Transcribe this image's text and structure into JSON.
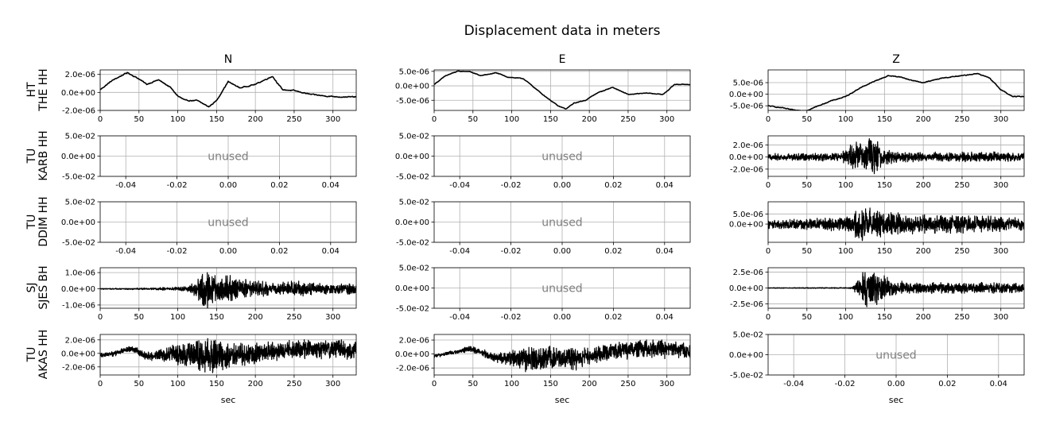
{
  "figure": {
    "title": "Displacement data in meters",
    "xlabel": "sec",
    "unused_label": "unused"
  },
  "columns": [
    "N",
    "E",
    "Z"
  ],
  "rows": [
    {
      "network": "HT",
      "station": "THE HH"
    },
    {
      "network": "TU",
      "station": "KARB HH"
    },
    {
      "network": "TU",
      "station": "DDIM HH"
    },
    {
      "network": "SJ",
      "station": "SJES BH"
    },
    {
      "network": "TU",
      "station": "AKAS HH"
    }
  ],
  "colors": {
    "trace": "#000000",
    "grid": "#b0b0b0",
    "unused_text": "#808080",
    "axes": "#000000"
  },
  "chart_data": [
    {
      "type": "line",
      "row": 0,
      "col": 0,
      "used": true,
      "xlim": [
        0,
        330
      ],
      "ylim": [
        -2e-06,
        2.5e-06
      ],
      "xticks": [
        "0",
        "50",
        "100",
        "150",
        "200",
        "250",
        "300"
      ],
      "xtick_values": [
        0,
        50,
        100,
        150,
        200,
        250,
        300
      ],
      "yticks": [
        "2.0e-06",
        "0.0e+00",
        "-2.0e-06"
      ],
      "ytick_values": [
        2e-06,
        0,
        -2e-06
      ],
      "series": [
        {
          "kind": "drift",
          "noise": 1e-07,
          "x": [
            0,
            15,
            35,
            50,
            60,
            75,
            90,
            100,
            110,
            125,
            140,
            150,
            165,
            180,
            200,
            222,
            235,
            250,
            270,
            290,
            310,
            330
          ],
          "y": [
            3e-07,
            1.3e-06,
            2.2e-06,
            1.5e-06,
            9e-07,
            1.4e-06,
            6e-07,
            -4e-07,
            -9e-07,
            -9e-07,
            -1.6e-06,
            -9e-07,
            1.2e-06,
            5e-07,
            9e-07,
            1.8e-06,
            3e-07,
            2e-07,
            -2e-07,
            -4e-07,
            -5e-07,
            -5e-07
          ]
        }
      ]
    },
    {
      "type": "line",
      "row": 0,
      "col": 1,
      "used": true,
      "xlim": [
        0,
        330
      ],
      "ylim": [
        -8.5e-06,
        5.5e-06
      ],
      "xticks": [
        "0",
        "50",
        "100",
        "150",
        "200",
        "250",
        "300"
      ],
      "xtick_values": [
        0,
        50,
        100,
        150,
        200,
        250,
        300
      ],
      "yticks": [
        "5.0e-06",
        "0.0e+00",
        "-5.0e-06"
      ],
      "ytick_values": [
        5e-06,
        0,
        -5e-06
      ],
      "series": [
        {
          "kind": "drift",
          "noise": 2e-07,
          "x": [
            0,
            15,
            30,
            45,
            60,
            80,
            95,
            115,
            140,
            160,
            170,
            180,
            195,
            210,
            230,
            250,
            275,
            295,
            310,
            330
          ],
          "y": [
            5e-07,
            3.5e-06,
            5e-06,
            5e-06,
            3.5e-06,
            4.5e-06,
            3e-06,
            2.5e-06,
            -3e-06,
            -7e-06,
            -8e-06,
            -6e-06,
            -5e-06,
            -2.5e-06,
            -5e-07,
            -3e-06,
            -2.5e-06,
            -3e-06,
            5e-07,
            5e-07
          ]
        }
      ]
    },
    {
      "type": "line",
      "row": 0,
      "col": 2,
      "used": true,
      "xlim": [
        0,
        330
      ],
      "ylim": [
        -7e-06,
        1.05e-05
      ],
      "xticks": [
        "0",
        "50",
        "100",
        "150",
        "200",
        "250",
        "300"
      ],
      "xtick_values": [
        0,
        50,
        100,
        150,
        200,
        250,
        300
      ],
      "yticks": [
        "5.0e-06",
        "0.0e+00",
        "-5.0e-06"
      ],
      "ytick_values": [
        5e-06,
        0,
        -5e-06
      ],
      "series": [
        {
          "kind": "drift",
          "noise": 3e-07,
          "x": [
            0,
            20,
            35,
            50,
            65,
            80,
            100,
            120,
            140,
            155,
            170,
            185,
            200,
            225,
            250,
            270,
            285,
            300,
            315,
            330
          ],
          "y": [
            -5e-06,
            -6e-06,
            -7e-06,
            -7e-06,
            -5e-06,
            -3e-06,
            -1e-06,
            3e-06,
            6e-06,
            8e-06,
            7.5e-06,
            6e-06,
            5e-06,
            7e-06,
            8e-06,
            9e-06,
            7e-06,
            2e-06,
            -1e-06,
            -1e-06
          ]
        }
      ]
    },
    {
      "type": "line",
      "row": 1,
      "col": 0,
      "used": false,
      "xlim": [
        -0.05,
        0.05
      ],
      "ylim": [
        -0.05,
        0.05
      ],
      "xticks": [
        "-0.04",
        "-0.02",
        "0.00",
        "0.02",
        "0.04"
      ],
      "xtick_values": [
        -0.04,
        -0.02,
        0,
        0.02,
        0.04
      ],
      "yticks": [
        "5.0e-02",
        "0.0e+00",
        "-5.0e-02"
      ],
      "ytick_values": [
        0.05,
        0,
        -0.05
      ],
      "series": []
    },
    {
      "type": "line",
      "row": 1,
      "col": 1,
      "used": false,
      "xlim": [
        -0.05,
        0.05
      ],
      "ylim": [
        -0.05,
        0.05
      ],
      "xticks": [
        "-0.04",
        "-0.02",
        "0.00",
        "0.02",
        "0.04"
      ],
      "xtick_values": [
        -0.04,
        -0.02,
        0,
        0.02,
        0.04
      ],
      "yticks": [
        "5.0e-02",
        "0.0e+00",
        "-5.0e-02"
      ],
      "ytick_values": [
        0.05,
        0,
        -0.05
      ],
      "series": []
    },
    {
      "type": "line",
      "row": 1,
      "col": 2,
      "used": true,
      "xlim": [
        0,
        330
      ],
      "ylim": [
        -3.2e-06,
        3.5e-06
      ],
      "xticks": [
        "0",
        "50",
        "100",
        "150",
        "200",
        "250",
        "300"
      ],
      "xtick_values": [
        0,
        50,
        100,
        150,
        200,
        250,
        300
      ],
      "yticks": [
        "2.0e-06",
        "0.0e+00",
        "-2.0e-06"
      ],
      "ytick_values": [
        2e-06,
        0,
        -2e-06
      ],
      "series": [
        {
          "kind": "noise",
          "base": 0,
          "pre_amp": 5e-07,
          "env_x": [
            0,
            90,
            100,
            110,
            120,
            130,
            140,
            150,
            170,
            200,
            250,
            290,
            330
          ],
          "env_y": [
            5e-07,
            6e-07,
            1e-06,
            2.6e-06,
            2e-06,
            2.8e-06,
            2.5e-06,
            1.3e-06,
            8e-07,
            7e-07,
            7e-07,
            8e-07,
            6e-07
          ]
        }
      ]
    },
    {
      "type": "line",
      "row": 2,
      "col": 0,
      "used": false,
      "xlim": [
        -0.05,
        0.05
      ],
      "ylim": [
        -0.05,
        0.05
      ],
      "xticks": [
        "-0.04",
        "-0.02",
        "0.00",
        "0.02",
        "0.04"
      ],
      "xtick_values": [
        -0.04,
        -0.02,
        0,
        0.02,
        0.04
      ],
      "yticks": [
        "5.0e-02",
        "0.0e+00",
        "-5.0e-02"
      ],
      "ytick_values": [
        0.05,
        0,
        -0.05
      ],
      "series": []
    },
    {
      "type": "line",
      "row": 2,
      "col": 1,
      "used": false,
      "xlim": [
        -0.05,
        0.05
      ],
      "ylim": [
        -0.05,
        0.05
      ],
      "xticks": [
        "-0.04",
        "-0.02",
        "0.00",
        "0.02",
        "0.04"
      ],
      "xtick_values": [
        -0.04,
        -0.02,
        0,
        0.02,
        0.04
      ],
      "yticks": [
        "5.0e-02",
        "0.0e+00",
        "-5.0e-02"
      ],
      "ytick_values": [
        0.05,
        0,
        -0.05
      ],
      "series": []
    },
    {
      "type": "line",
      "row": 2,
      "col": 2,
      "used": true,
      "xlim": [
        0,
        330
      ],
      "ylim": [
        -9e-06,
        1.1e-05
      ],
      "xticks": [
        "0",
        "50",
        "100",
        "150",
        "200",
        "250",
        "300"
      ],
      "xtick_values": [
        0,
        50,
        100,
        150,
        200,
        250,
        300
      ],
      "yticks": [
        "5.0e-06",
        "0.0e+00"
      ],
      "ytick_values": [
        5e-06,
        0
      ],
      "series": [
        {
          "kind": "noise",
          "base": 0,
          "pre_amp": 2e-06,
          "env_x": [
            0,
            60,
            100,
            110,
            120,
            130,
            140,
            160,
            200,
            250,
            300,
            330
          ],
          "env_y": [
            2e-06,
            2.5e-06,
            3.5e-06,
            5e-06,
            8e-06,
            7e-06,
            6e-06,
            5e-06,
            4e-06,
            4e-06,
            3.5e-06,
            3e-06
          ]
        }
      ]
    },
    {
      "type": "line",
      "row": 3,
      "col": 0,
      "used": true,
      "xlim": [
        0,
        330
      ],
      "ylim": [
        -1.2e-06,
        1.3e-06
      ],
      "xticks": [
        "0",
        "50",
        "100",
        "150",
        "200",
        "250",
        "300"
      ],
      "xtick_values": [
        0,
        50,
        100,
        150,
        200,
        250,
        300
      ],
      "yticks": [
        "1.0e-06",
        "0.0e+00",
        "-1.0e-06"
      ],
      "ytick_values": [
        1e-06,
        0,
        -1e-06
      ],
      "series": [
        {
          "kind": "noise",
          "base": 0,
          "pre_amp": 5e-08,
          "env_x": [
            0,
            60,
            100,
            115,
            125,
            135,
            145,
            160,
            180,
            200,
            230,
            250,
            280,
            330
          ],
          "env_y": [
            3e-08,
            5e-08,
            1e-07,
            2e-07,
            5e-07,
            1.2e-06,
            1e-06,
            8e-07,
            6e-07,
            5e-07,
            3.5e-07,
            4.5e-07,
            3e-07,
            3e-07
          ]
        }
      ]
    },
    {
      "type": "line",
      "row": 3,
      "col": 1,
      "used": false,
      "xlim": [
        -0.05,
        0.05
      ],
      "ylim": [
        -0.05,
        0.05
      ],
      "xticks": [
        "-0.04",
        "-0.02",
        "0.00",
        "0.02",
        "0.04"
      ],
      "xtick_values": [
        -0.04,
        -0.02,
        0,
        0.02,
        0.04
      ],
      "yticks": [
        "5.0e-02",
        "0.0e+00",
        "-5.0e-02"
      ],
      "ytick_values": [
        0.05,
        0,
        -0.05
      ],
      "series": []
    },
    {
      "type": "line",
      "row": 3,
      "col": 2,
      "used": true,
      "xlim": [
        0,
        330
      ],
      "ylim": [
        -3.2e-06,
        3.2e-06
      ],
      "xticks": [
        "0",
        "50",
        "100",
        "150",
        "200",
        "250",
        "300"
      ],
      "xtick_values": [
        0,
        50,
        100,
        150,
        200,
        250,
        300
      ],
      "yticks": [
        "2.5e-06",
        "0.0e+00",
        "-2.5e-06"
      ],
      "ytick_values": [
        2.5e-06,
        0,
        -2.5e-06
      ],
      "series": [
        {
          "kind": "noise",
          "base": 0,
          "pre_amp": 5e-08,
          "env_x": [
            0,
            105,
            110,
            115,
            125,
            135,
            145,
            160,
            180,
            220,
            270,
            330
          ],
          "env_y": [
            5e-08,
            8e-08,
            3e-07,
            1.5e-06,
            2.5e-06,
            3e-06,
            2e-06,
            1.2e-06,
            8e-07,
            8e-07,
            8e-07,
            7e-07
          ]
        }
      ]
    },
    {
      "type": "line",
      "row": 4,
      "col": 0,
      "used": true,
      "xlim": [
        0,
        330
      ],
      "ylim": [
        -3.2e-06,
        2.8e-06
      ],
      "xticks": [
        "0",
        "50",
        "100",
        "150",
        "200",
        "250",
        "300"
      ],
      "xtick_values": [
        0,
        50,
        100,
        150,
        200,
        250,
        300
      ],
      "yticks": [
        "2.0e-06",
        "0.0e+00",
        "-2.0e-06"
      ],
      "ytick_values": [
        2e-06,
        0,
        -2e-06
      ],
      "series": [
        {
          "kind": "noise",
          "pre_amp": 3e-07,
          "base_x": [
            0,
            20,
            40,
            60,
            100,
            150,
            200,
            250,
            330
          ],
          "base_y": [
            -3e-07,
            0.0,
            8e-07,
            -5e-07,
            0.0,
            -5e-07,
            0.0,
            7e-07,
            5e-07
          ],
          "env_x": [
            0,
            40,
            60,
            90,
            110,
            130,
            150,
            170,
            200,
            250,
            300,
            330
          ],
          "env_y": [
            3e-07,
            4e-07,
            6e-07,
            1.2e-06,
            2e-06,
            2.2e-06,
            2.3e-06,
            1.8e-06,
            1.3e-06,
            1.2e-06,
            1.4e-06,
            1.2e-06
          ]
        }
      ]
    },
    {
      "type": "line",
      "row": 4,
      "col": 1,
      "used": true,
      "xlim": [
        0,
        330
      ],
      "ylim": [
        -3e-06,
        2.8e-06
      ],
      "xticks": [
        "0",
        "50",
        "100",
        "150",
        "200",
        "250",
        "300"
      ],
      "xtick_values": [
        0,
        50,
        100,
        150,
        200,
        250,
        300
      ],
      "yticks": [
        "2.0e-06",
        "0.0e+00",
        "-2.0e-06"
      ],
      "ytick_values": [
        2e-06,
        0,
        -2e-06
      ],
      "series": [
        {
          "kind": "noise",
          "pre_amp": 2e-07,
          "base_x": [
            0,
            30,
            45,
            60,
            80,
            100,
            130,
            150,
            180,
            200,
            230,
            260,
            300,
            330
          ],
          "base_y": [
            -3e-07,
            3e-07,
            8e-07,
            3e-07,
            -6e-07,
            -6e-07,
            -8e-07,
            -6e-07,
            -7e-07,
            -4e-07,
            5e-07,
            6e-07,
            8e-07,
            3e-07
          ],
          "env_x": [
            0,
            50,
            80,
            100,
            120,
            150,
            180,
            200,
            230,
            260,
            300,
            330
          ],
          "env_y": [
            2e-07,
            4e-07,
            6e-07,
            1.1e-06,
            1.6e-06,
            1.5e-06,
            1.5e-06,
            1.1e-06,
            1e-06,
            1.2e-06,
            1.3e-06,
            1e-06
          ]
        }
      ]
    },
    {
      "type": "line",
      "row": 4,
      "col": 2,
      "used": false,
      "xlim": [
        -0.05,
        0.05
      ],
      "ylim": [
        -0.05,
        0.05
      ],
      "xticks": [
        "-0.04",
        "-0.02",
        "0.00",
        "0.02",
        "0.04"
      ],
      "xtick_values": [
        -0.04,
        -0.02,
        0,
        0.02,
        0.04
      ],
      "yticks": [
        "5.0e-02",
        "0.0e+00",
        "-5.0e-02"
      ],
      "ytick_values": [
        0.05,
        0,
        -0.05
      ],
      "series": []
    }
  ]
}
